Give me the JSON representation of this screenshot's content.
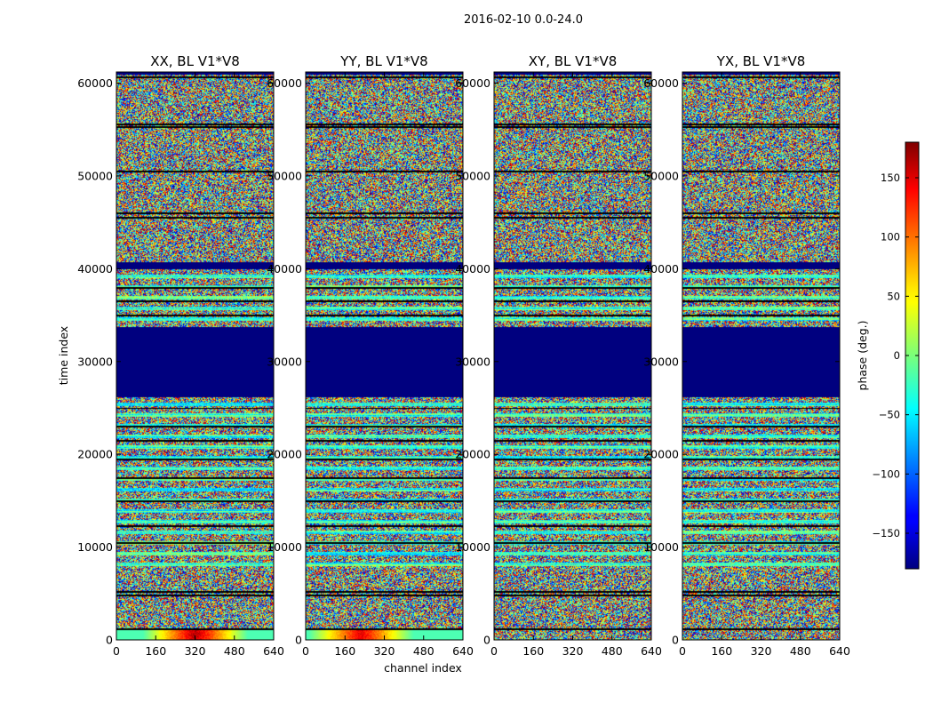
{
  "figure": {
    "suptitle": "2016-02-10 0.0-24.0",
    "xlabel": "channel index",
    "ylabel": "time index",
    "colorbar_label": "phase (deg.)"
  },
  "chart_data": {
    "type": "heatmap",
    "colormap": "jet",
    "panels": [
      {
        "title": "XX, BL V1*V8"
      },
      {
        "title": "YY, BL V1*V8"
      },
      {
        "title": "XY, BL V1*V8"
      },
      {
        "title": "YX, BL V1*V8"
      }
    ],
    "x_ticks": [
      "0",
      "160",
      "320",
      "480",
      "640"
    ],
    "x_tick_values": [
      0,
      160,
      320,
      480,
      640
    ],
    "xlim": [
      0,
      640
    ],
    "y_ticks": [
      "0",
      "10000",
      "20000",
      "30000",
      "40000",
      "50000",
      "60000"
    ],
    "y_tick_values": [
      0,
      10000,
      20000,
      30000,
      40000,
      50000,
      60000
    ],
    "ylim": [
      0,
      61200
    ],
    "colorbar_ticks": [
      "150",
      "100",
      "50",
      "0",
      "−50",
      "−100",
      "−150"
    ],
    "colorbar_tick_values": [
      150,
      100,
      50,
      0,
      -50,
      -100,
      -150
    ],
    "colorbar_range": [
      -180,
      180
    ],
    "flagged_blocks": [
      {
        "t_start": 26200,
        "t_end": 33800
      },
      {
        "t_start": 40000,
        "t_end": 40800
      },
      {
        "t_start": 61000,
        "t_end": 61200
      }
    ],
    "gap_lines": [
      1200,
      4800,
      5200,
      10500,
      12300,
      15000,
      17500,
      19500,
      21500,
      23000,
      25000,
      35000,
      36500,
      38000,
      45500,
      46000,
      50500,
      55300,
      55600,
      60700
    ],
    "colors": {
      "flagged": "#00007f",
      "axes_frame": "#000000"
    }
  }
}
